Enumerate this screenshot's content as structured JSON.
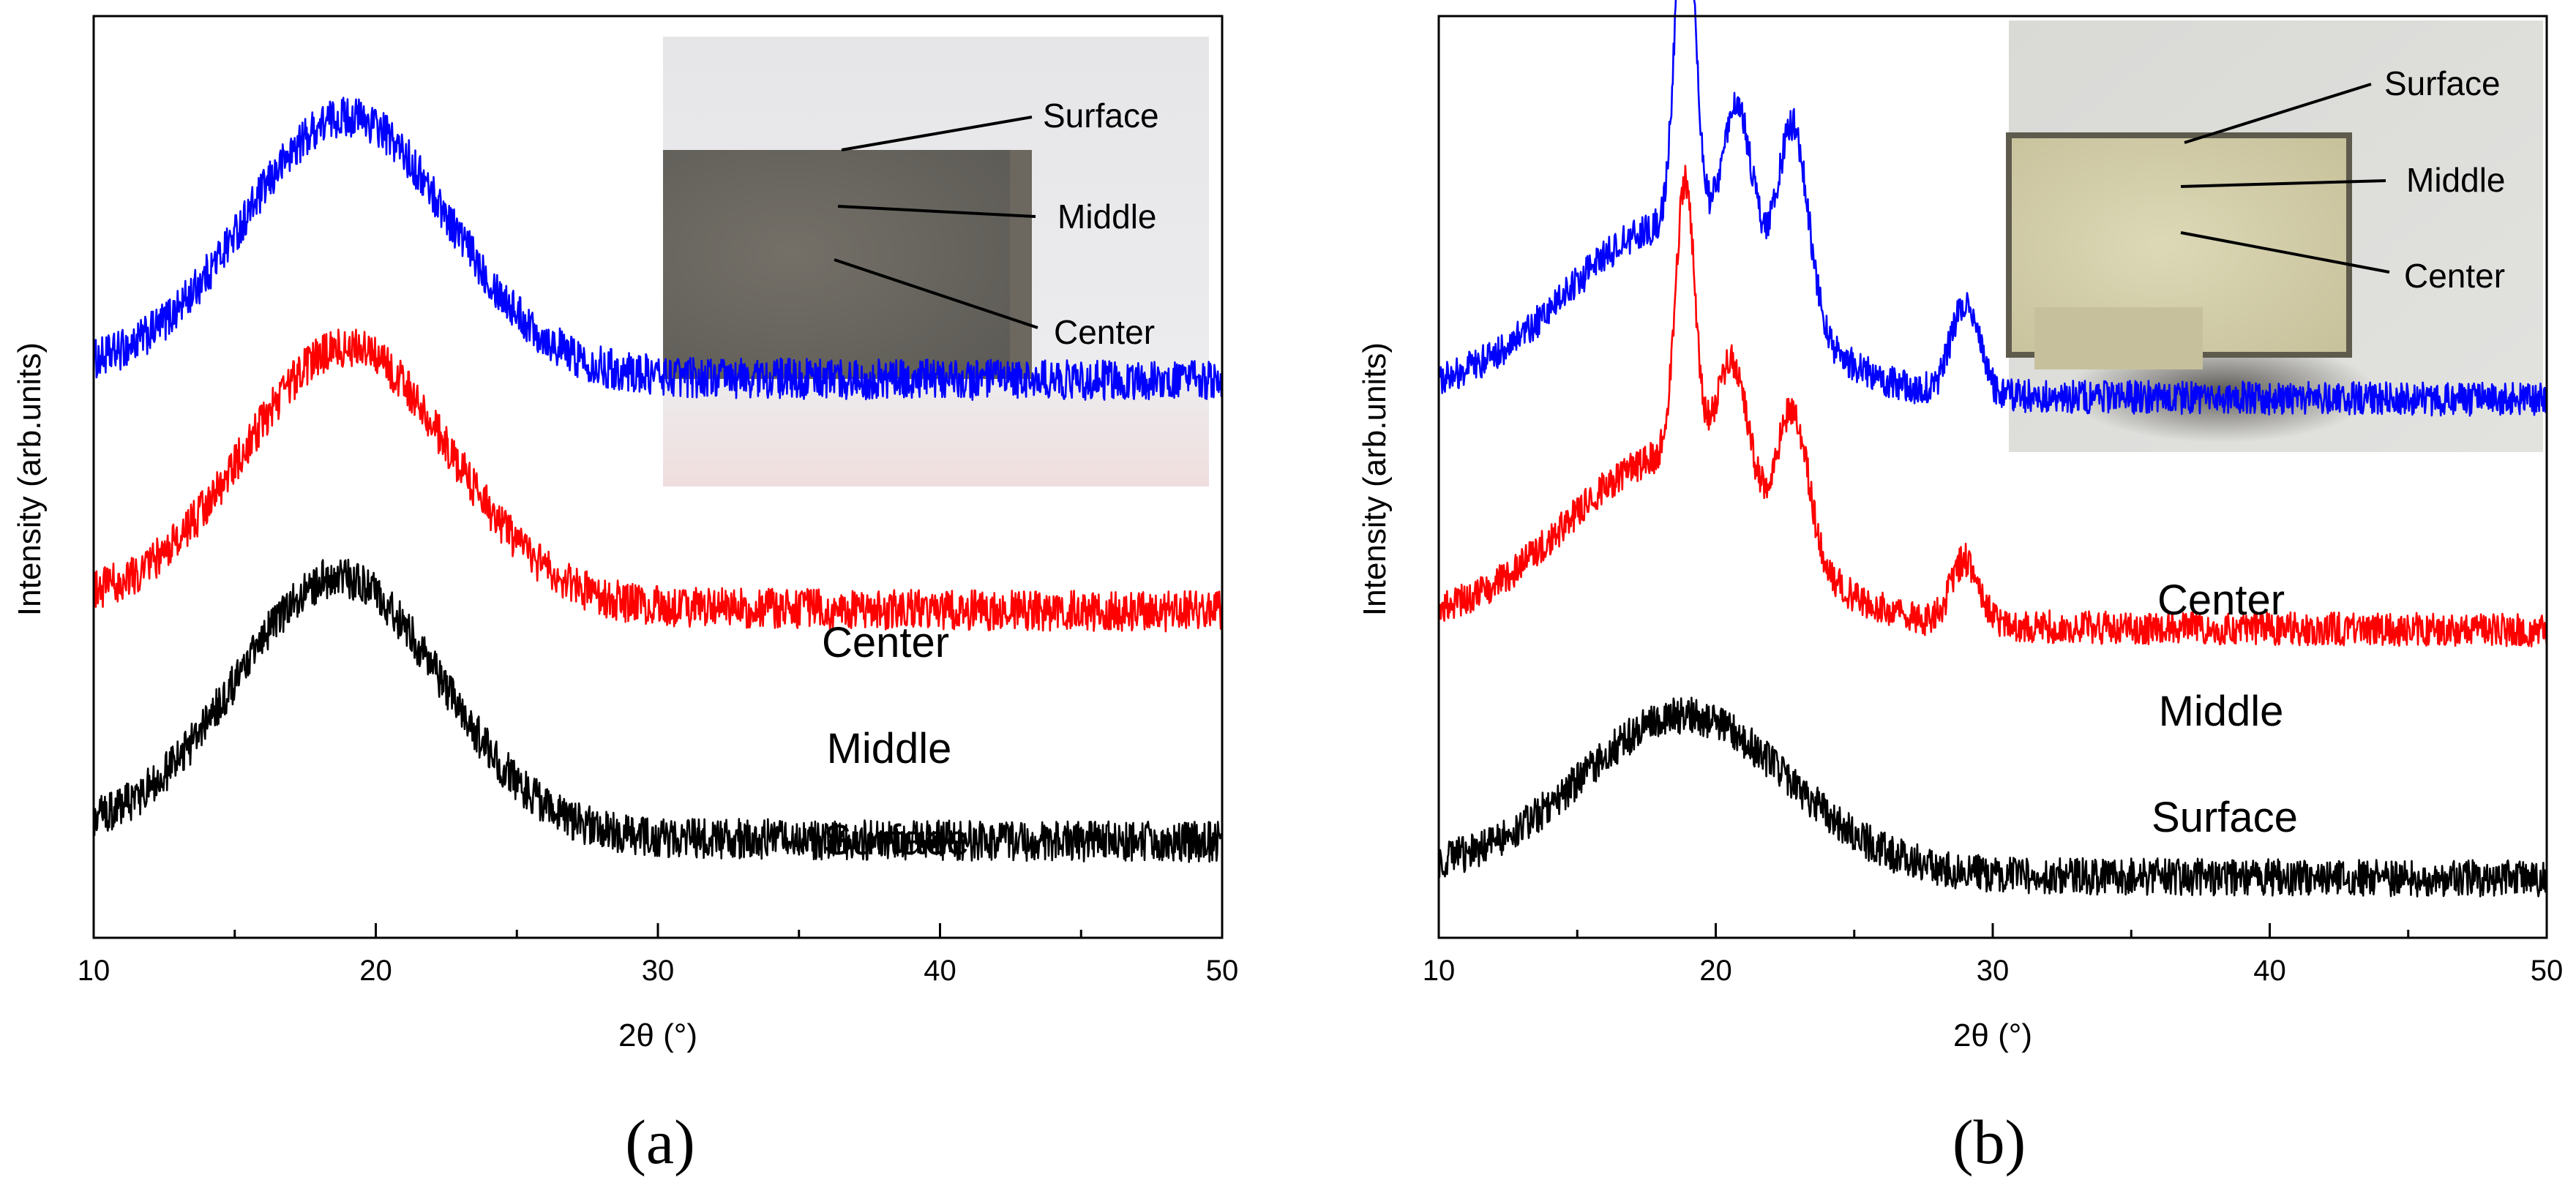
{
  "chart_data": [
    {
      "type": "line",
      "panel_label": "(a)",
      "xlabel": "2θ (°)",
      "ylabel": "Intensity (arb.units)",
      "xlim": [
        10,
        50
      ],
      "xticks": [
        10,
        20,
        30,
        40,
        50
      ],
      "yticks": false,
      "series": [
        {
          "name": "Center",
          "color": "#0000ff",
          "baseline": 0.6,
          "noise": 0.022,
          "peaks": [
            {
              "center": 19.0,
              "height": 0.28,
              "width": 3.6
            }
          ]
        },
        {
          "name": "Middle",
          "color": "#ff0000",
          "baseline": 0.35,
          "noise": 0.022,
          "peaks": [
            {
              "center": 19.0,
              "height": 0.28,
              "width": 3.6
            }
          ]
        },
        {
          "name": "Surface",
          "color": "#000000",
          "baseline": 0.1,
          "noise": 0.022,
          "peaks": [
            {
              "center": 18.7,
              "height": 0.28,
              "width": 3.6
            }
          ]
        }
      ],
      "inset": {
        "description": "photo of cross-section (dark grey block)",
        "labels": [
          "Surface",
          "Middle",
          "Center"
        ]
      }
    },
    {
      "type": "line",
      "panel_label": "(b)",
      "xlabel": "2θ (°)",
      "ylabel": "Intensity (arb.units)",
      "xlim": [
        10,
        50
      ],
      "xticks": [
        10,
        20,
        30,
        40,
        50
      ],
      "yticks": false,
      "series": [
        {
          "name": "Center",
          "color": "#0000ff",
          "baseline": 0.58,
          "noise": 0.018,
          "peaks": [
            {
              "center": 18.3,
              "height": 0.18,
              "width": 3.6
            },
            {
              "center": 18.9,
              "height": 0.38,
              "width": 0.35
            },
            {
              "center": 20.8,
              "height": 0.17,
              "width": 0.55
            },
            {
              "center": 22.8,
              "height": 0.21,
              "width": 0.55
            },
            {
              "center": 29.0,
              "height": 0.1,
              "width": 0.5
            }
          ]
        },
        {
          "name": "Middle",
          "color": "#ff0000",
          "baseline": 0.33,
          "noise": 0.018,
          "peaks": [
            {
              "center": 18.3,
              "height": 0.18,
              "width": 3.6
            },
            {
              "center": 18.9,
              "height": 0.3,
              "width": 0.35
            },
            {
              "center": 20.6,
              "height": 0.14,
              "width": 0.55
            },
            {
              "center": 22.8,
              "height": 0.15,
              "width": 0.55
            },
            {
              "center": 29.0,
              "height": 0.07,
              "width": 0.5
            }
          ]
        },
        {
          "name": "Surface",
          "color": "#000000",
          "baseline": 0.06,
          "noise": 0.02,
          "peaks": [
            {
              "center": 18.9,
              "height": 0.17,
              "width": 3.7
            }
          ]
        }
      ],
      "inset": {
        "description": "photo of cross-section (light beige block)",
        "labels": [
          "Surface",
          "Middle",
          "Center"
        ]
      }
    }
  ]
}
